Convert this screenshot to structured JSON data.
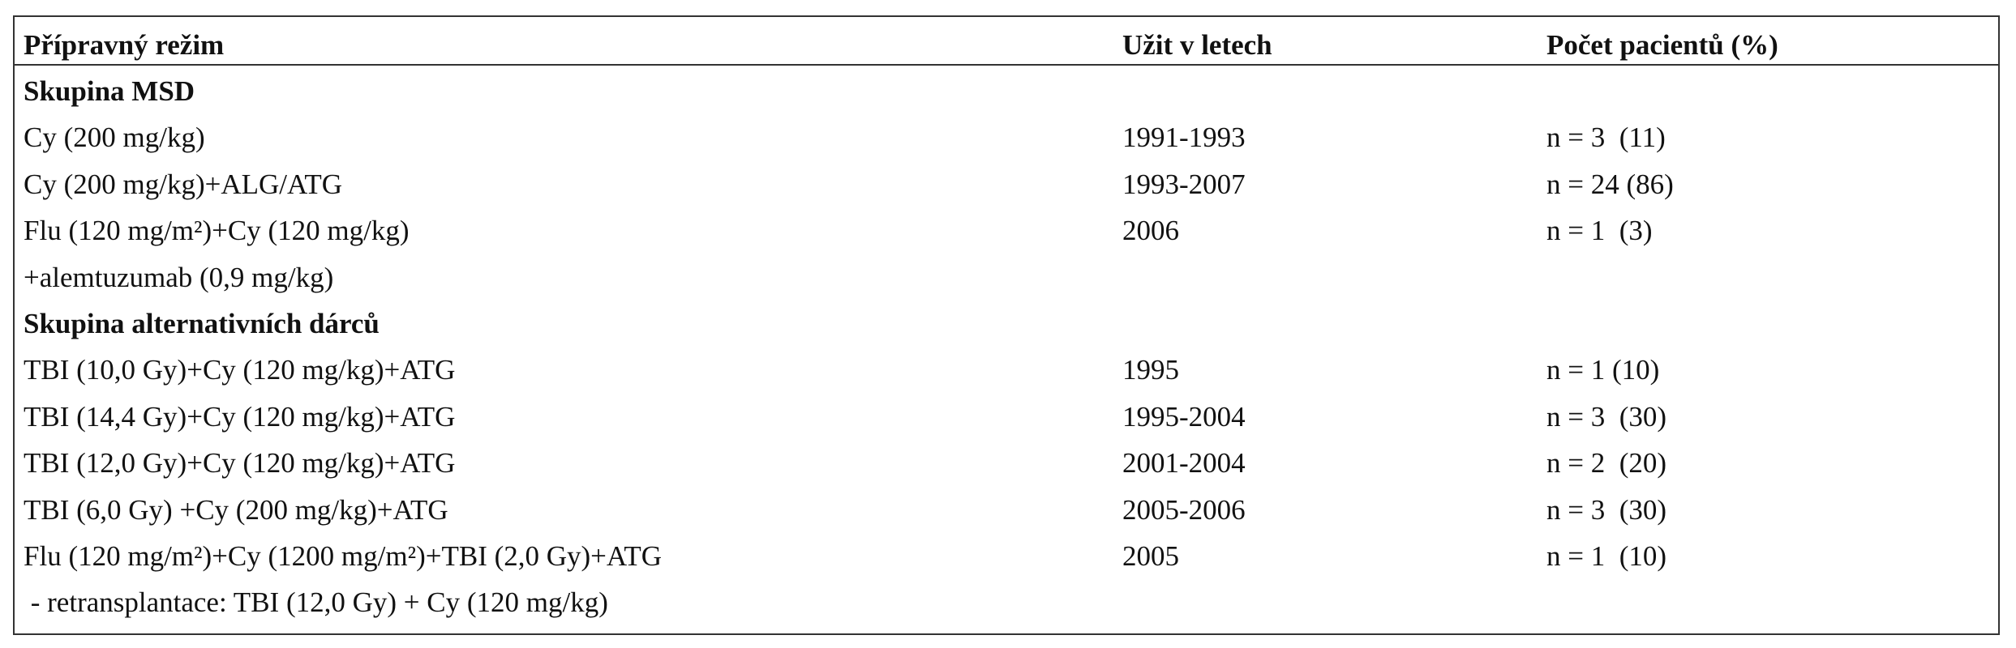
{
  "table": {
    "header": [
      "Přípravný režim",
      "Užit v letech",
      "Počet pacientů (%)"
    ],
    "rows": [
      {
        "group": "Skupina MSD"
      },
      {
        "cells": [
          "Cy (200 mg/kg)",
          "1991-1993",
          "n = 3  (11)"
        ]
      },
      {
        "cells": [
          "Cy (200 mg/kg)+ALG/ATG",
          "1993-2007",
          "n = 24 (86)"
        ]
      },
      {
        "cells": [
          "Flu (120 mg/m²)+Cy (120 mg/kg)",
          "2006",
          "n = 1  (3)"
        ]
      },
      {
        "cells": [
          "+alemtuzumab (0,9 mg/kg)"
        ]
      },
      {
        "group": "Skupina alternativních dárců"
      },
      {
        "cells": [
          "TBI (10,0 Gy)+Cy (120 mg/kg)+ATG",
          "1995",
          "n = 1 (10)"
        ]
      },
      {
        "cells": [
          "TBI (14,4 Gy)+Cy (120 mg/kg)+ATG",
          "1995-2004",
          "n = 3  (30)"
        ]
      },
      {
        "cells": [
          "TBI (12,0 Gy)+Cy (120 mg/kg)+ATG",
          "2001-2004",
          "n = 2  (20)"
        ]
      },
      {
        "cells": [
          "TBI (6,0 Gy) +Cy (200 mg/kg)+ATG",
          "2005-2006",
          "n = 3  (30)"
        ]
      },
      {
        "cells": [
          "Flu (120 mg/m²)+Cy (1200 mg/m²)+TBI (2,0 Gy)+ATG",
          "2005",
          "n = 1  (10)"
        ]
      },
      {
        "cells": [
          " - retransplantace: TBI (12,0 Gy) + Cy (120 mg/kg)"
        ]
      }
    ]
  }
}
